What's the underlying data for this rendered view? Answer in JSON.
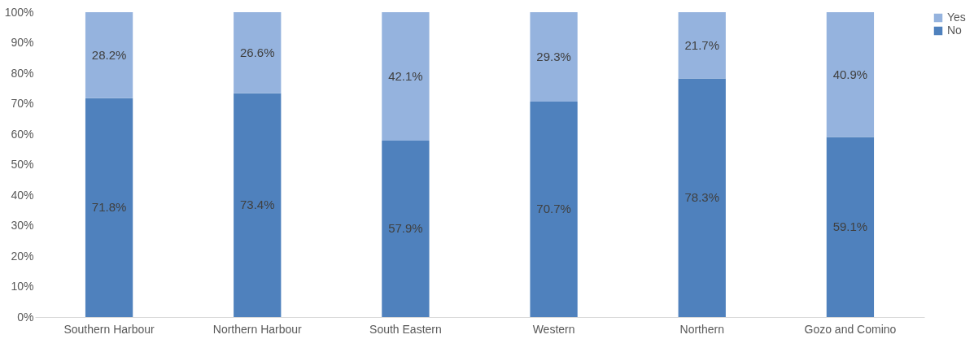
{
  "chart_data": {
    "type": "bar",
    "stacked": true,
    "categories": [
      "Southern Harbour",
      "Northern Harbour",
      "South Eastern",
      "Western",
      "Northern",
      "Gozo and Comino"
    ],
    "series": [
      {
        "name": "No",
        "color": "#4f81bd",
        "values": [
          71.8,
          73.4,
          57.9,
          70.7,
          78.3,
          59.1
        ],
        "value_labels": [
          "71.8%",
          "73.4%",
          "57.9%",
          "70.7%",
          "78.3%",
          "59.1%"
        ]
      },
      {
        "name": "Yes",
        "color": "#95b3de",
        "values": [
          28.2,
          26.6,
          42.1,
          29.3,
          21.7,
          40.9
        ],
        "value_labels": [
          "28.2%",
          "26.6%",
          "42.1%",
          "29.3%",
          "21.7%",
          "40.9%"
        ]
      }
    ],
    "ylim": [
      0,
      100
    ],
    "yticks": [
      {
        "value": 0,
        "label": "0%"
      },
      {
        "value": 10,
        "label": "10%"
      },
      {
        "value": 20,
        "label": "20%"
      },
      {
        "value": 30,
        "label": "30%"
      },
      {
        "value": 40,
        "label": "40%"
      },
      {
        "value": 50,
        "label": "50%"
      },
      {
        "value": 60,
        "label": "60%"
      },
      {
        "value": 70,
        "label": "70%"
      },
      {
        "value": 80,
        "label": "80%"
      },
      {
        "value": 90,
        "label": "90%"
      },
      {
        "value": 100,
        "label": "100%"
      }
    ],
    "grid": false,
    "legend": "right"
  }
}
